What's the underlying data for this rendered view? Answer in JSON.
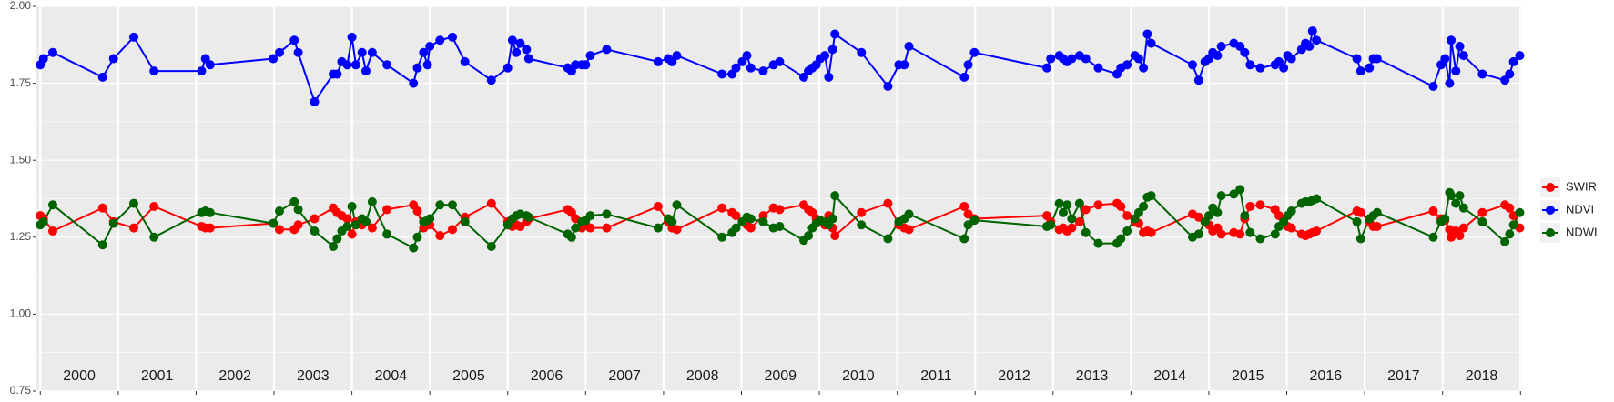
{
  "chart_data": {
    "type": "line",
    "x": [
      2000.0,
      2000.04,
      2000.16,
      2000.8,
      2000.94,
      2001.2,
      2001.46,
      2002.07,
      2002.12,
      2002.18,
      2002.99,
      2003.07,
      2003.26,
      2003.31,
      2003.52,
      2003.76,
      2003.81,
      2003.87,
      2003.94,
      2004.0,
      2004.05,
      2004.13,
      2004.18,
      2004.26,
      2004.45,
      2004.79,
      2004.84,
      2004.92,
      2004.97,
      2005.0,
      2005.13,
      2005.29,
      2005.45,
      2005.79,
      2006.0,
      2006.06,
      2006.11,
      2006.16,
      2006.24,
      2006.27,
      2006.77,
      2006.82,
      2006.87,
      2006.95,
      2007.0,
      2007.06,
      2007.27,
      2007.93,
      2008.06,
      2008.11,
      2008.17,
      2008.75,
      2008.88,
      2008.93,
      2009.01,
      2009.07,
      2009.12,
      2009.28,
      2009.41,
      2009.49,
      2009.8,
      2009.86,
      2009.91,
      2009.96,
      2010.01,
      2010.07,
      2010.12,
      2010.17,
      2010.2,
      2010.54,
      2010.88,
      2011.02,
      2011.09,
      2011.15,
      2011.86,
      2011.91,
      2011.99,
      2012.92,
      2012.97,
      2013.08,
      2013.13,
      2013.18,
      2013.24,
      2013.34,
      2013.42,
      2013.58,
      2013.82,
      2013.87,
      2013.95,
      2014.05,
      2014.1,
      2014.16,
      2014.21,
      2014.26,
      2014.79,
      2014.87,
      2014.95,
      2015.0,
      2015.05,
      2015.11,
      2015.16,
      2015.32,
      2015.4,
      2015.46,
      2015.53,
      2015.66,
      2015.85,
      2015.9,
      2015.96,
      2016.01,
      2016.06,
      2016.19,
      2016.24,
      2016.29,
      2016.33,
      2016.38,
      2016.9,
      2016.95,
      2017.06,
      2017.11,
      2017.16,
      2017.88,
      2017.98,
      2018.03,
      2018.09,
      2018.11,
      2018.17,
      2018.22,
      2018.27,
      2018.51,
      2018.8,
      2018.86,
      2018.91,
      2018.99
    ],
    "series": [
      {
        "name": "SWIR",
        "color": "#ff0000",
        "values": [
          1.32,
          1.31,
          1.27,
          1.345,
          1.3,
          1.28,
          1.35,
          1.285,
          1.28,
          1.28,
          1.295,
          1.275,
          1.275,
          1.29,
          1.31,
          1.345,
          1.33,
          1.32,
          1.31,
          1.26,
          1.3,
          1.29,
          1.3,
          1.28,
          1.34,
          1.355,
          1.335,
          1.28,
          1.3,
          1.29,
          1.255,
          1.275,
          1.315,
          1.36,
          1.3,
          1.285,
          1.29,
          1.285,
          1.3,
          1.31,
          1.34,
          1.33,
          1.31,
          1.28,
          1.29,
          1.28,
          1.28,
          1.35,
          1.3,
          1.28,
          1.275,
          1.345,
          1.33,
          1.32,
          1.3,
          1.29,
          1.28,
          1.32,
          1.345,
          1.34,
          1.355,
          1.34,
          1.33,
          1.31,
          1.3,
          1.29,
          1.32,
          1.28,
          1.255,
          1.33,
          1.36,
          1.29,
          1.28,
          1.275,
          1.35,
          1.325,
          1.31,
          1.32,
          1.3,
          1.275,
          1.28,
          1.27,
          1.28,
          1.3,
          1.34,
          1.355,
          1.36,
          1.35,
          1.32,
          1.3,
          1.295,
          1.265,
          1.27,
          1.265,
          1.325,
          1.315,
          1.3,
          1.29,
          1.27,
          1.28,
          1.26,
          1.265,
          1.26,
          1.31,
          1.35,
          1.355,
          1.34,
          1.32,
          1.3,
          1.285,
          1.28,
          1.26,
          1.255,
          1.26,
          1.265,
          1.27,
          1.335,
          1.33,
          1.3,
          1.285,
          1.285,
          1.335,
          1.31,
          1.305,
          1.275,
          1.25,
          1.27,
          1.255,
          1.28,
          1.33,
          1.355,
          1.345,
          1.32,
          1.28
        ]
      },
      {
        "name": "NDVI",
        "color": "#0000ff",
        "values": [
          1.81,
          1.83,
          1.85,
          1.77,
          1.83,
          1.9,
          1.79,
          1.79,
          1.83,
          1.81,
          1.83,
          1.85,
          1.89,
          1.85,
          1.69,
          1.78,
          1.78,
          1.82,
          1.81,
          1.9,
          1.81,
          1.85,
          1.79,
          1.85,
          1.81,
          1.75,
          1.8,
          1.85,
          1.81,
          1.87,
          1.89,
          1.9,
          1.82,
          1.76,
          1.8,
          1.89,
          1.85,
          1.88,
          1.86,
          1.83,
          1.8,
          1.79,
          1.81,
          1.81,
          1.81,
          1.84,
          1.86,
          1.82,
          1.83,
          1.82,
          1.84,
          1.78,
          1.78,
          1.8,
          1.82,
          1.84,
          1.8,
          1.79,
          1.81,
          1.82,
          1.77,
          1.79,
          1.8,
          1.81,
          1.83,
          1.84,
          1.77,
          1.86,
          1.91,
          1.85,
          1.74,
          1.81,
          1.81,
          1.87,
          1.77,
          1.81,
          1.85,
          1.8,
          1.83,
          1.84,
          1.83,
          1.82,
          1.83,
          1.84,
          1.83,
          1.8,
          1.78,
          1.8,
          1.81,
          1.84,
          1.83,
          1.8,
          1.91,
          1.88,
          1.81,
          1.76,
          1.82,
          1.83,
          1.85,
          1.84,
          1.87,
          1.88,
          1.87,
          1.85,
          1.81,
          1.8,
          1.81,
          1.82,
          1.8,
          1.84,
          1.83,
          1.86,
          1.88,
          1.87,
          1.92,
          1.89,
          1.83,
          1.79,
          1.8,
          1.83,
          1.83,
          1.74,
          1.81,
          1.83,
          1.75,
          1.89,
          1.79,
          1.87,
          1.84,
          1.78,
          1.76,
          1.78,
          1.82,
          1.84
        ]
      },
      {
        "name": "NDWI",
        "color": "#006400",
        "values": [
          1.29,
          1.3,
          1.355,
          1.225,
          1.295,
          1.36,
          1.25,
          1.33,
          1.335,
          1.33,
          1.295,
          1.335,
          1.365,
          1.34,
          1.27,
          1.22,
          1.245,
          1.27,
          1.285,
          1.35,
          1.29,
          1.31,
          1.3,
          1.365,
          1.26,
          1.215,
          1.25,
          1.3,
          1.305,
          1.31,
          1.355,
          1.355,
          1.3,
          1.22,
          1.29,
          1.31,
          1.32,
          1.325,
          1.32,
          1.315,
          1.26,
          1.25,
          1.28,
          1.3,
          1.305,
          1.32,
          1.325,
          1.28,
          1.31,
          1.3,
          1.355,
          1.25,
          1.265,
          1.28,
          1.3,
          1.315,
          1.31,
          1.3,
          1.28,
          1.285,
          1.24,
          1.255,
          1.28,
          1.295,
          1.305,
          1.3,
          1.29,
          1.31,
          1.385,
          1.29,
          1.245,
          1.3,
          1.31,
          1.325,
          1.245,
          1.29,
          1.305,
          1.285,
          1.29,
          1.36,
          1.33,
          1.355,
          1.31,
          1.36,
          1.265,
          1.23,
          1.23,
          1.245,
          1.27,
          1.31,
          1.33,
          1.35,
          1.38,
          1.385,
          1.25,
          1.26,
          1.3,
          1.32,
          1.345,
          1.33,
          1.385,
          1.39,
          1.405,
          1.32,
          1.265,
          1.245,
          1.26,
          1.285,
          1.3,
          1.32,
          1.335,
          1.36,
          1.365,
          1.365,
          1.37,
          1.375,
          1.3,
          1.245,
          1.31,
          1.32,
          1.33,
          1.25,
          1.3,
          1.31,
          1.395,
          1.385,
          1.36,
          1.385,
          1.345,
          1.3,
          1.235,
          1.26,
          1.29,
          1.33
        ]
      }
    ],
    "xlim": [
      1999.95,
      2019.02
    ],
    "xticks": [
      2000,
      2001,
      2002,
      2003,
      2004,
      2005,
      2006,
      2007,
      2008,
      2009,
      2010,
      2011,
      2012,
      2013,
      2014,
      2015,
      2016,
      2017,
      2018,
      2019
    ],
    "year_labels": [
      "2000",
      "2001",
      "2002",
      "2003",
      "2004",
      "2005",
      "2006",
      "2007",
      "2008",
      "2009",
      "2010",
      "2011",
      "2012",
      "2013",
      "2014",
      "2015",
      "2016",
      "2017",
      "2018"
    ],
    "ylim": [
      0.75,
      2.0
    ],
    "yticks": [
      {
        "value": 0.75,
        "label": "0.75"
      },
      {
        "value": 1.0,
        "label": "1.00"
      },
      {
        "value": 1.25,
        "label": "1.25"
      },
      {
        "value": 1.5,
        "label": "1.50"
      },
      {
        "value": 1.75,
        "label": "1.75"
      },
      {
        "value": 2.0,
        "label": "2.00"
      }
    ],
    "grid": true,
    "legend": "right"
  }
}
